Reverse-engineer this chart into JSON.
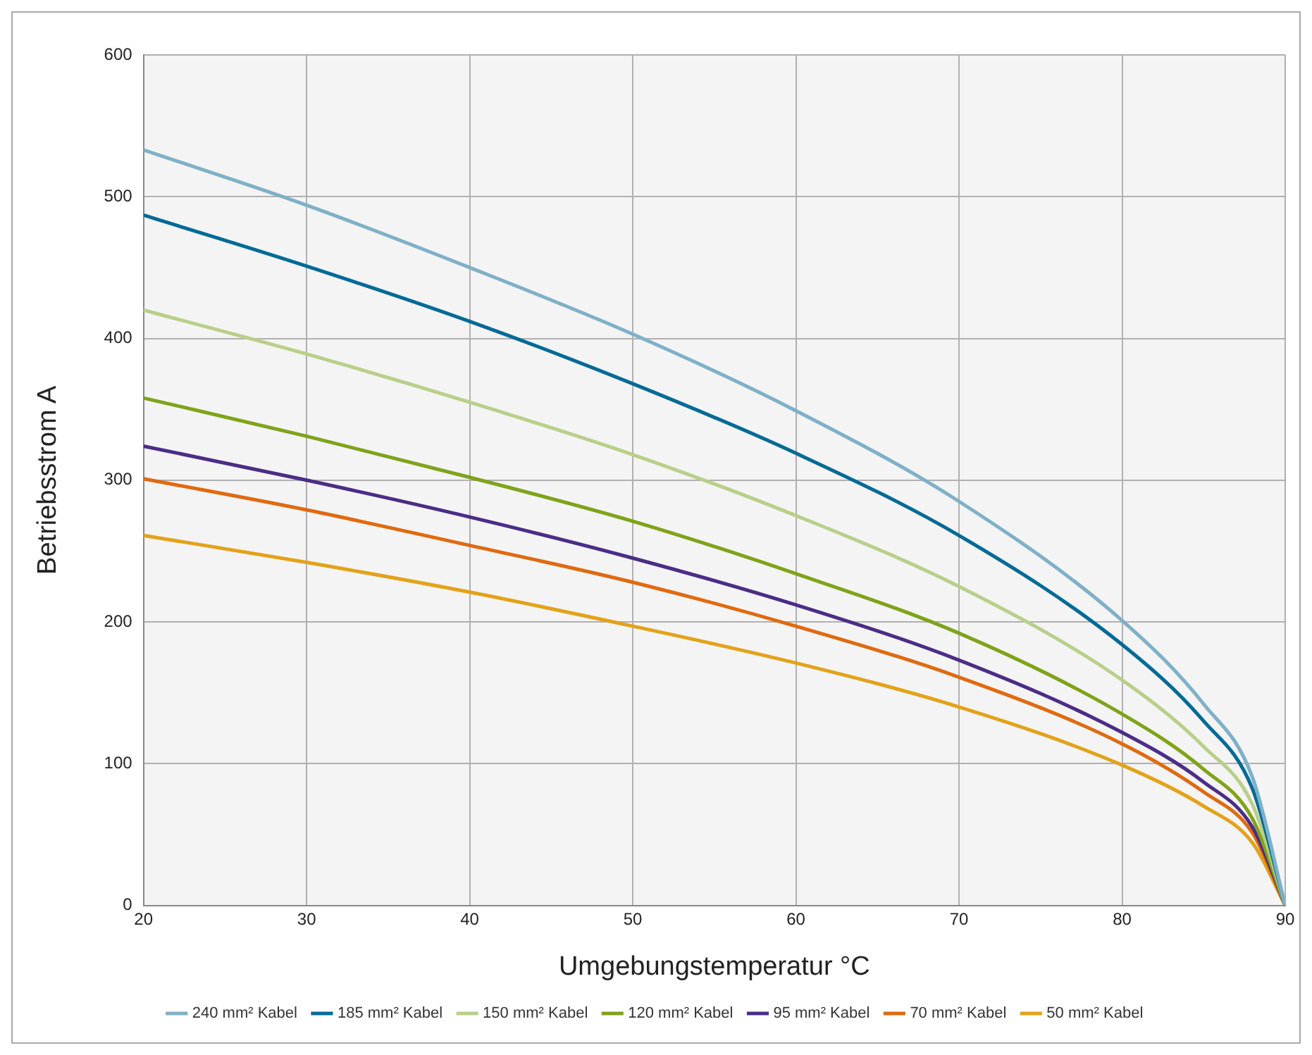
{
  "chart_data": {
    "type": "line",
    "xlabel": "Umgebungstemperatur °C",
    "ylabel": "Betriebsstrom A",
    "x": [
      20,
      30,
      40,
      50,
      60,
      70,
      80,
      85,
      88,
      90
    ],
    "series": [
      {
        "name": "240 mm² Kabel",
        "color": "#7fb0c8",
        "values": [
          533,
          494,
          450,
          403,
          349,
          285,
          201,
          142,
          90,
          0
        ]
      },
      {
        "name": "185 mm² Kabel",
        "color": "#006a96",
        "values": [
          487,
          451,
          412,
          368,
          319,
          261,
          184,
          130,
          82,
          0
        ]
      },
      {
        "name": "150 mm² Kabel",
        "color": "#b9cf8a",
        "values": [
          420,
          389,
          355,
          318,
          275,
          225,
          159,
          112,
          71,
          0
        ]
      },
      {
        "name": "120 mm² Kabel",
        "color": "#7fa31a",
        "values": [
          358,
          331,
          302,
          271,
          234,
          192,
          135,
          96,
          61,
          0
        ]
      },
      {
        "name": "95 mm² Kabel",
        "color": "#4b2d86",
        "values": [
          324,
          300,
          274,
          245,
          212,
          173,
          122,
          87,
          55,
          0
        ]
      },
      {
        "name": "70 mm² Kabel",
        "color": "#e06a10",
        "values": [
          301,
          279,
          254,
          228,
          197,
          161,
          114,
          80,
          51,
          0
        ]
      },
      {
        "name": "50 mm² Kabel",
        "color": "#e3a21a",
        "values": [
          261,
          242,
          221,
          197,
          171,
          140,
          99,
          70,
          44,
          0
        ]
      }
    ],
    "xlim": [
      20,
      90
    ],
    "xticks": [
      20,
      30,
      40,
      50,
      60,
      70,
      80,
      90
    ],
    "ylim": [
      0,
      600
    ],
    "yticks": [
      0,
      100,
      200,
      300,
      400,
      500,
      600
    ],
    "grid": true,
    "legend": "bottom",
    "marker": "none",
    "line_style": "solid"
  }
}
